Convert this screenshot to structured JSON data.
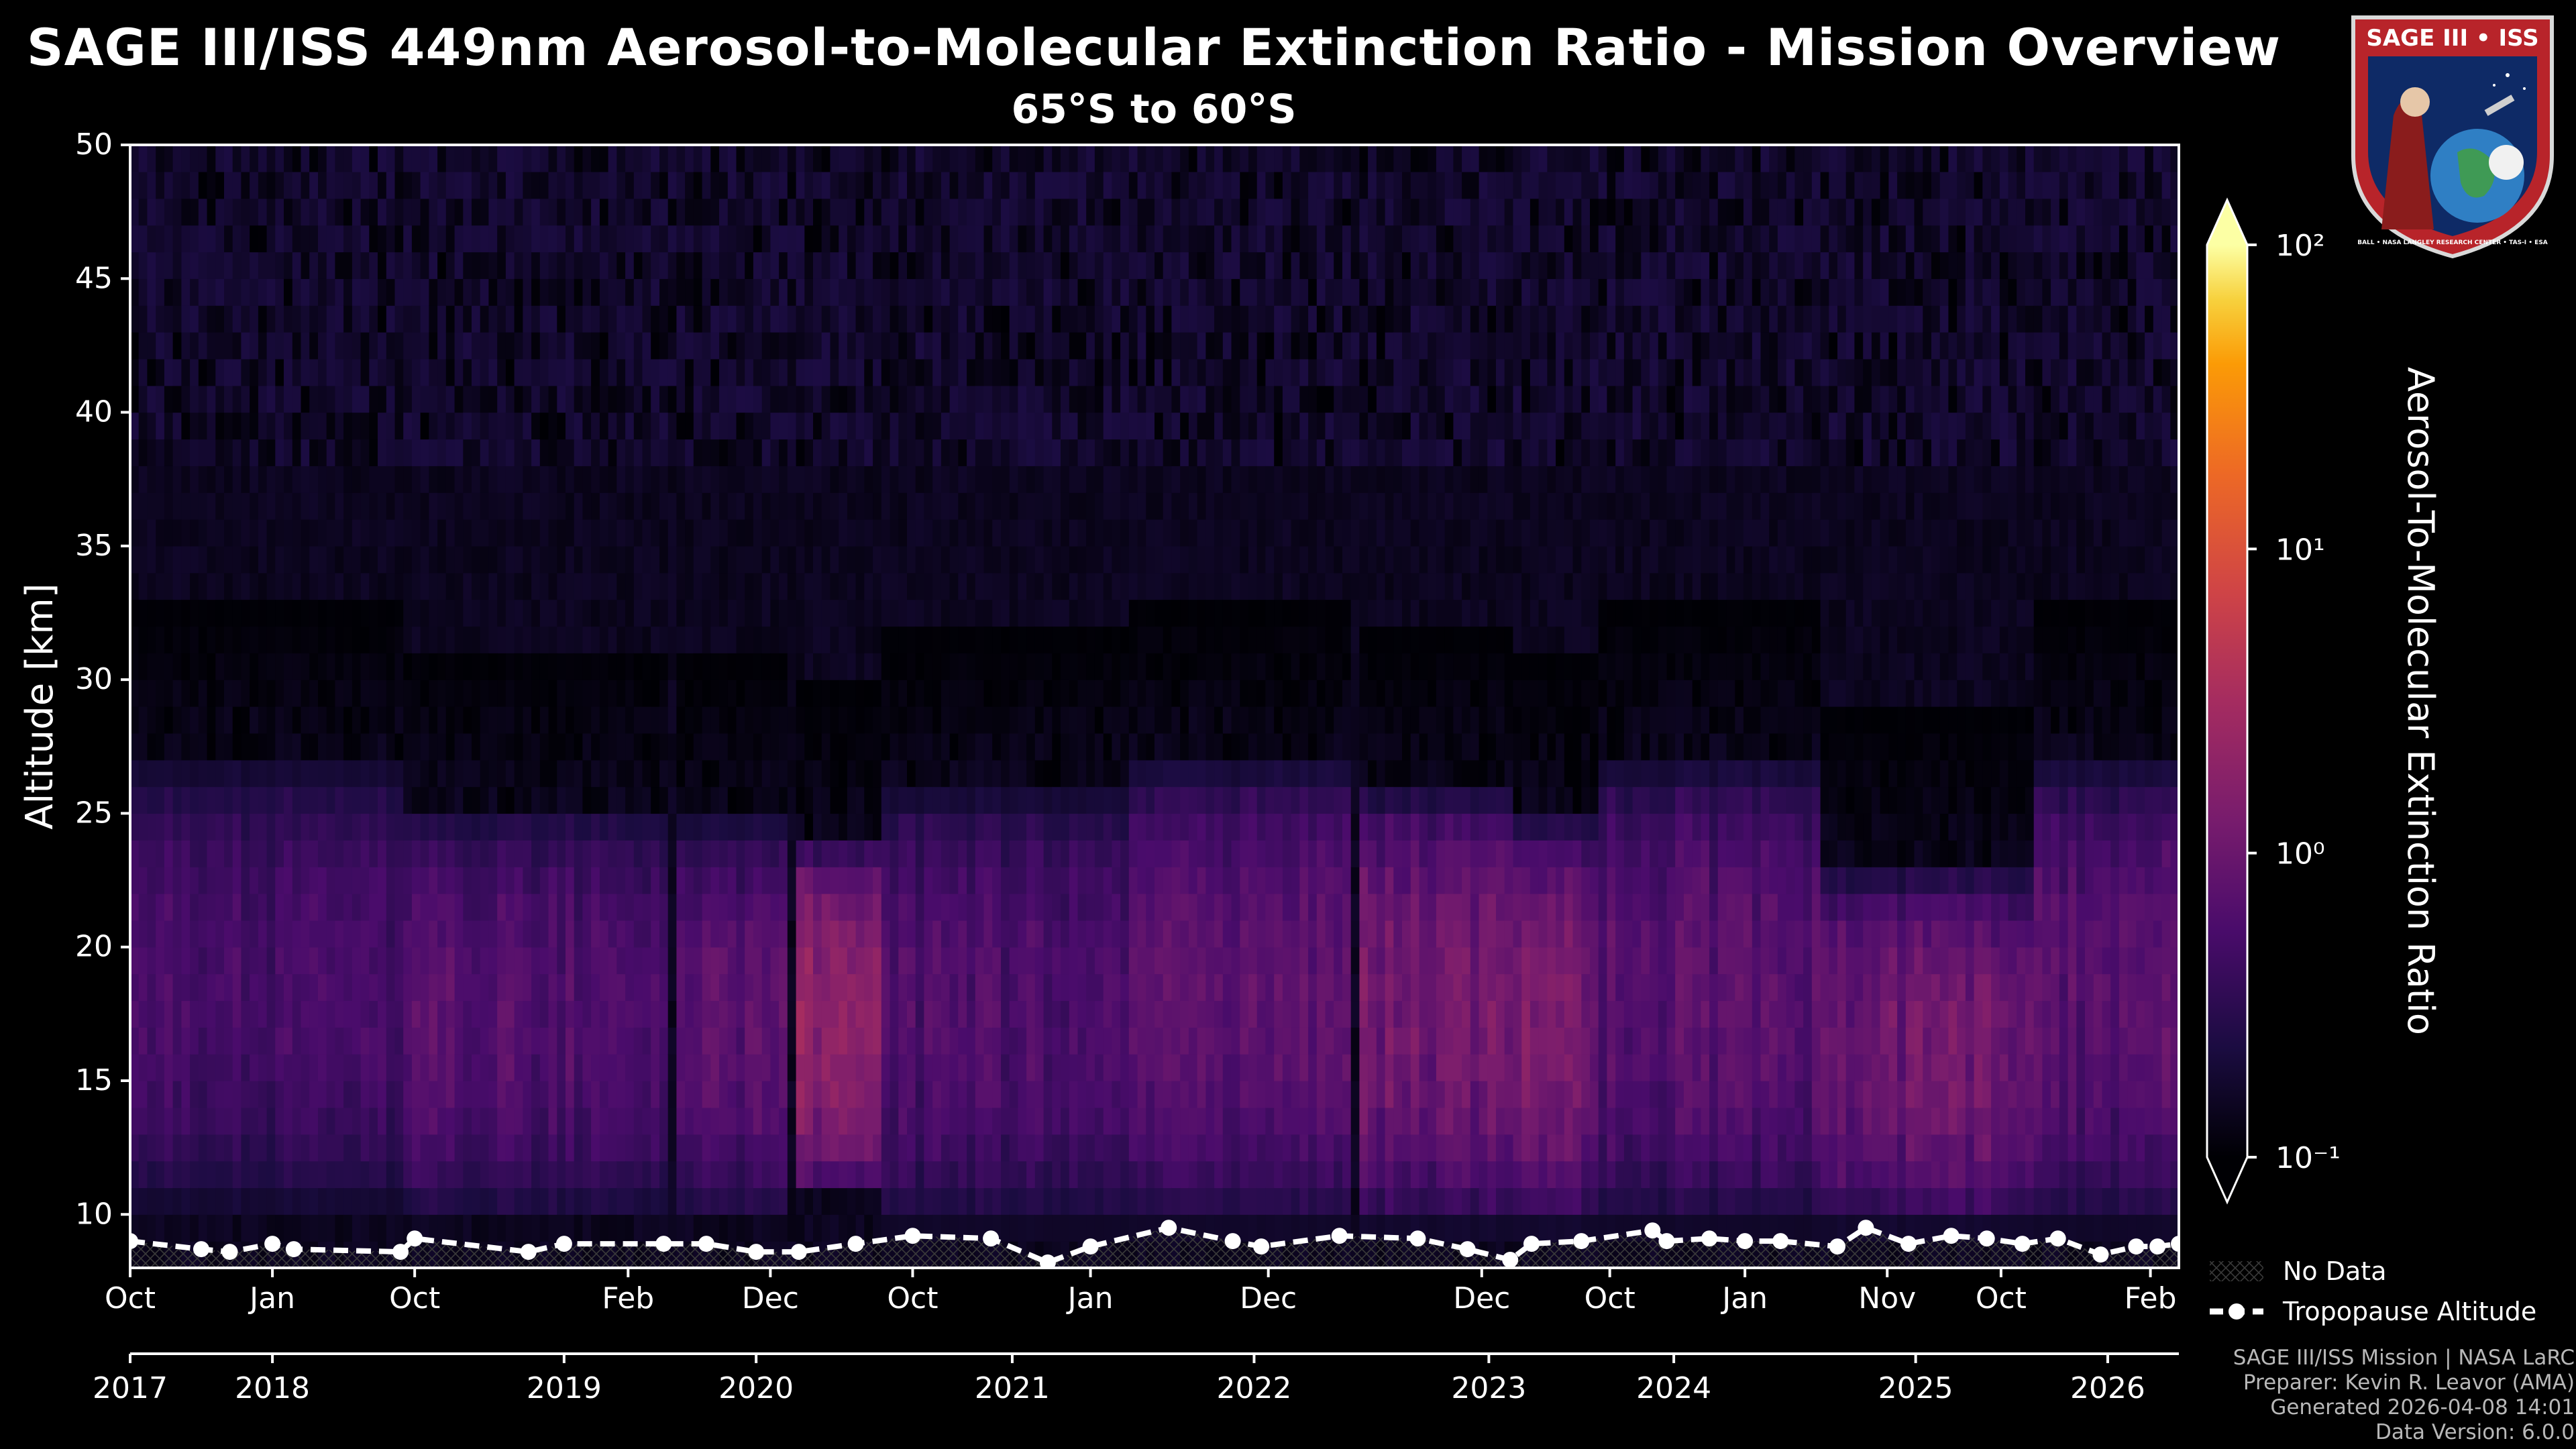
{
  "title": "SAGE III/ISS 449nm Aerosol-to-Molecular Extinction Ratio - Mission Overview",
  "subtitle": "65°S to 60°S",
  "logo": {
    "title": "SAGE III • ISS",
    "ring_text": "BALL • NASA LANGLEY RESEARCH CENTER • TAS-I • ESA"
  },
  "footer": {
    "line1": "SAGE III/ISS Mission | NASA LaRC",
    "line2": "Preparer: Kevin R. Leavor (AMA)",
    "line3": "Generated 2026-04-08 14:01",
    "line4": "Data Version: 6.0.0"
  },
  "chart_data": {
    "type": "heatmap",
    "title": "SAGE III/ISS 449nm Aerosol-to-Molecular Extinction Ratio - Mission Overview",
    "subtitle": "65°S to 60°S",
    "ylabel": "Altitude [km]",
    "ylim": [
      8,
      50
    ],
    "yticks": [
      10,
      15,
      20,
      25,
      30,
      35,
      40,
      45,
      50
    ],
    "colorbar": {
      "label": "Aerosol-To-Molecular Extinction Ratio",
      "scale": "log",
      "min": 0.1,
      "max": 100,
      "ticks": [
        "10⁻¹",
        "10⁰",
        "10¹",
        "10²"
      ],
      "colormap": "inferno"
    },
    "x_month_ticks": [
      {
        "label": "Oct",
        "x": 0
      },
      {
        "label": "Jan",
        "x": 1
      },
      {
        "label": "Oct",
        "x": 2
      },
      {
        "label": "Feb",
        "x": 3.5
      },
      {
        "label": "Dec",
        "x": 4.5
      },
      {
        "label": "Oct",
        "x": 5.5
      },
      {
        "label": "Jan",
        "x": 6.75
      },
      {
        "label": "Dec",
        "x": 8
      },
      {
        "label": "Dec",
        "x": 9.5
      },
      {
        "label": "Oct",
        "x": 10.4
      },
      {
        "label": "Jan",
        "x": 11.35
      },
      {
        "label": "Nov",
        "x": 12.35
      },
      {
        "label": "Oct",
        "x": 13.15
      },
      {
        "label": "Feb",
        "x": 14.2
      }
    ],
    "x_year_ticks": [
      {
        "label": "2017",
        "x": 0
      },
      {
        "label": "2018",
        "x": 1
      },
      {
        "label": "2019",
        "x": 3.05
      },
      {
        "label": "2020",
        "x": 4.4
      },
      {
        "label": "2021",
        "x": 6.2
      },
      {
        "label": "2022",
        "x": 7.9
      },
      {
        "label": "2023",
        "x": 9.55
      },
      {
        "label": "2024",
        "x": 10.85
      },
      {
        "label": "2025",
        "x": 12.55
      },
      {
        "label": "2026",
        "x": 13.9
      }
    ],
    "x_range": [
      0,
      14.4
    ],
    "seasons": [
      {
        "x0": 0.02,
        "x1": 1.9,
        "top": 27,
        "bottom": 10,
        "peak": 0.45
      },
      {
        "x0": 1.95,
        "x1": 3.8,
        "top": 25.5,
        "bottom": 9.6,
        "peak": 0.55
      },
      {
        "x0": 3.85,
        "x1": 4.65,
        "top": 25,
        "bottom": 9.6,
        "peak": 0.6
      },
      {
        "x0": 4.7,
        "x1": 5.3,
        "top": 24,
        "bottom": 10.5,
        "peak": 1.4
      },
      {
        "x0": 5.3,
        "x1": 7.0,
        "top": 26,
        "bottom": 9.4,
        "peak": 0.5
      },
      {
        "x0": 7.05,
        "x1": 8.6,
        "top": 27,
        "bottom": 9.4,
        "peak": 0.6
      },
      {
        "x0": 8.65,
        "x1": 9.75,
        "top": 26,
        "bottom": 9.4,
        "peak": 0.9
      },
      {
        "x0": 9.75,
        "x1": 10.35,
        "top": 25,
        "bottom": 9.4,
        "peak": 1.05
      },
      {
        "x0": 10.35,
        "x1": 11.9,
        "top": 27,
        "bottom": 9.4,
        "peak": 0.6
      },
      {
        "x0": 11.9,
        "x1": 13.4,
        "top": 23,
        "bottom": 9.4,
        "peak": 0.85
      },
      {
        "x0": 13.4,
        "x1": 14.4,
        "top": 27,
        "bottom": 9.4,
        "peak": 0.6
      }
    ],
    "tropopause": {
      "x": [
        0,
        0.5,
        0.7,
        1.0,
        1.15,
        1.9,
        2.0,
        2.8,
        3.05,
        3.75,
        4.05,
        4.4,
        4.7,
        5.1,
        5.5,
        6.05,
        6.45,
        6.75,
        7.3,
        7.75,
        7.95,
        8.5,
        9.05,
        9.4,
        9.7,
        9.85,
        10.2,
        10.7,
        10.8,
        11.1,
        11.35,
        11.6,
        12.0,
        12.2,
        12.5,
        12.8,
        13.05,
        13.3,
        13.55,
        13.85,
        14.1,
        14.25,
        14.4
      ],
      "y": [
        9.0,
        8.7,
        8.6,
        8.9,
        8.7,
        8.6,
        9.1,
        8.6,
        8.9,
        8.9,
        8.9,
        8.6,
        8.6,
        8.9,
        9.2,
        9.1,
        8.2,
        8.8,
        9.5,
        9.0,
        8.8,
        9.2,
        9.1,
        8.7,
        8.3,
        8.9,
        9.0,
        9.4,
        9.0,
        9.1,
        9.0,
        9.0,
        8.8,
        9.5,
        8.9,
        9.2,
        9.1,
        8.9,
        9.1,
        8.5,
        8.8,
        8.8,
        8.9
      ]
    },
    "legend": [
      {
        "label": "No Data",
        "style": "hatch"
      },
      {
        "label": "Tropopause Altitude",
        "style": "dashed-line-with-circles"
      }
    ]
  }
}
